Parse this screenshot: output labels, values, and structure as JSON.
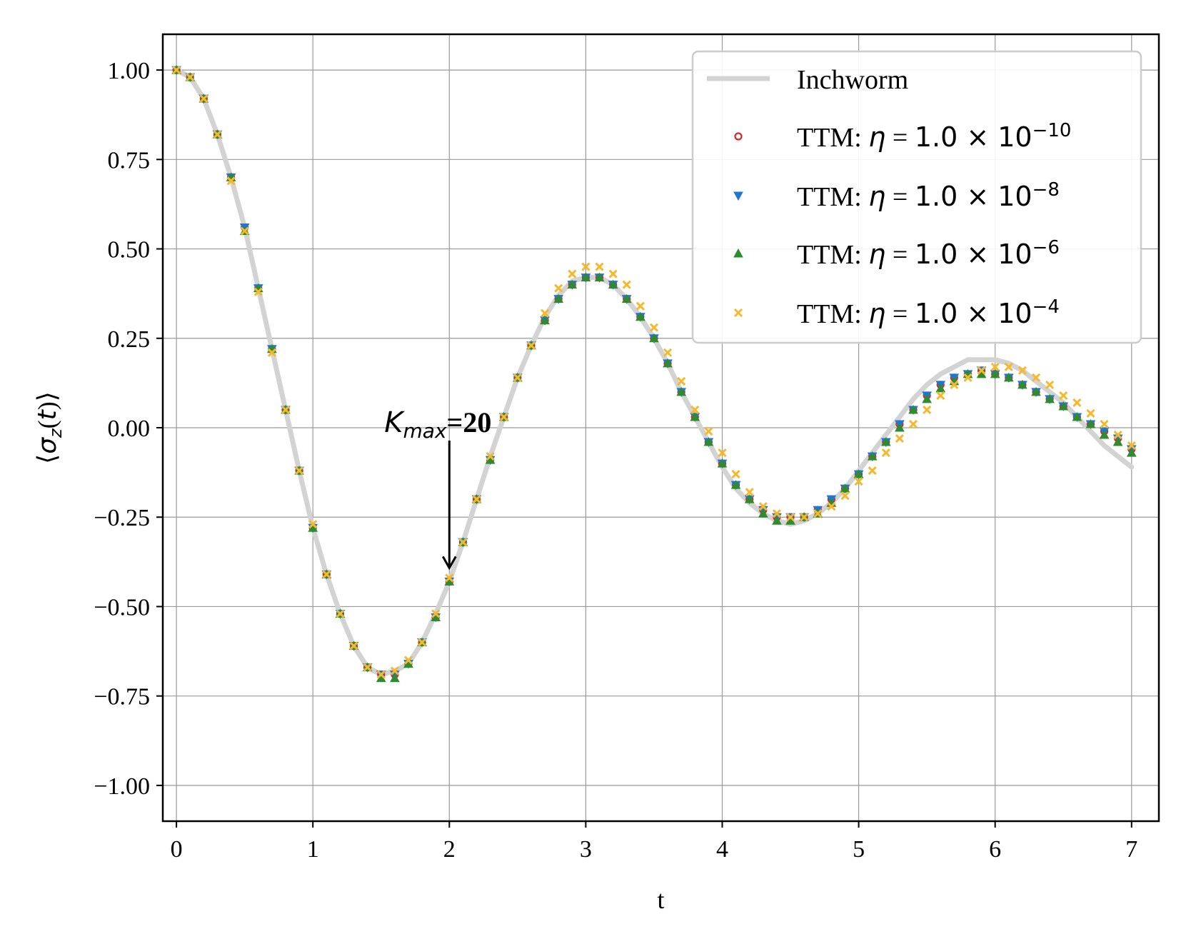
{
  "chart_data": {
    "type": "line+scatter",
    "xlabel": "t",
    "ylabel": "⟨σz(t)⟩",
    "xlim": [
      -0.1,
      7.2
    ],
    "ylim": [
      -1.1,
      1.1
    ],
    "xticks": [
      "0",
      "1",
      "2",
      "3",
      "4",
      "5",
      "6",
      "7"
    ],
    "yticks": [
      "1.00",
      "0.75",
      "0.50",
      "0.25",
      "0.00",
      "−0.25",
      "−0.50",
      "−0.75",
      "−1.00"
    ],
    "grid": true,
    "legend_position": "top-right",
    "x": [
      0.0,
      0.1,
      0.2,
      0.3,
      0.4,
      0.5,
      0.6,
      0.7,
      0.8,
      0.9,
      1.0,
      1.1,
      1.2,
      1.3,
      1.4,
      1.5,
      1.6,
      1.7,
      1.8,
      1.9,
      2.0,
      2.1,
      2.2,
      2.3,
      2.4,
      2.5,
      2.6,
      2.7,
      2.8,
      2.9,
      3.0,
      3.1,
      3.2,
      3.3,
      3.4,
      3.5,
      3.6,
      3.7,
      3.8,
      3.9,
      4.0,
      4.1,
      4.2,
      4.3,
      4.4,
      4.5,
      4.6,
      4.7,
      4.8,
      4.9,
      5.0,
      5.1,
      5.2,
      5.3,
      5.4,
      5.5,
      5.6,
      5.7,
      5.8,
      5.9,
      6.0,
      6.1,
      6.2,
      6.3,
      6.4,
      6.5,
      6.6,
      6.7,
      6.8,
      6.9,
      7.0
    ],
    "series": [
      {
        "name": "Inchworm",
        "kind": "line",
        "color": "#d3d3d3",
        "values": [
          1.0,
          0.98,
          0.92,
          0.82,
          0.7,
          0.56,
          0.39,
          0.22,
          0.05,
          -0.12,
          -0.28,
          -0.41,
          -0.52,
          -0.61,
          -0.67,
          -0.69,
          -0.68,
          -0.66,
          -0.6,
          -0.52,
          -0.43,
          -0.32,
          -0.2,
          -0.08,
          0.03,
          0.14,
          0.23,
          0.31,
          0.37,
          0.41,
          0.42,
          0.42,
          0.4,
          0.36,
          0.31,
          0.25,
          0.18,
          0.1,
          0.03,
          -0.04,
          -0.11,
          -0.17,
          -0.21,
          -0.24,
          -0.26,
          -0.27,
          -0.26,
          -0.24,
          -0.21,
          -0.17,
          -0.12,
          -0.07,
          -0.02,
          0.03,
          0.08,
          0.12,
          0.15,
          0.17,
          0.19,
          0.19,
          0.19,
          0.18,
          0.16,
          0.13,
          0.1,
          0.07,
          0.03,
          -0.01,
          -0.05,
          -0.08,
          -0.11
        ]
      },
      {
        "name": "TTM: η = 1.0 × 10⁻¹⁰",
        "kind": "scatter",
        "marker": "circle",
        "color": "#d62728",
        "values": [
          1.0,
          0.98,
          0.92,
          0.82,
          0.7,
          0.56,
          0.39,
          0.22,
          0.05,
          -0.12,
          -0.28,
          -0.41,
          -0.52,
          -0.61,
          -0.67,
          -0.69,
          -0.69,
          -0.66,
          -0.6,
          -0.53,
          -0.43,
          -0.32,
          -0.2,
          -0.09,
          0.03,
          0.14,
          0.23,
          0.3,
          0.36,
          0.4,
          0.42,
          0.42,
          0.4,
          0.36,
          0.31,
          0.25,
          0.18,
          0.1,
          0.03,
          -0.04,
          -0.1,
          -0.16,
          -0.2,
          -0.23,
          -0.25,
          -0.25,
          -0.25,
          -0.23,
          -0.2,
          -0.17,
          -0.13,
          -0.08,
          -0.04,
          0.01,
          0.05,
          0.09,
          0.12,
          0.14,
          0.15,
          0.16,
          0.15,
          0.14,
          0.12,
          0.1,
          0.08,
          0.06,
          0.03,
          0.01,
          -0.01,
          -0.03,
          -0.06
        ]
      },
      {
        "name": "TTM: η = 1.0 × 10⁻⁸",
        "kind": "scatter",
        "marker": "triangle-down",
        "color": "#1f77d4",
        "values": [
          1.0,
          0.98,
          0.92,
          0.82,
          0.7,
          0.56,
          0.39,
          0.22,
          0.05,
          -0.12,
          -0.28,
          -0.41,
          -0.52,
          -0.61,
          -0.67,
          -0.69,
          -0.69,
          -0.66,
          -0.6,
          -0.53,
          -0.43,
          -0.32,
          -0.2,
          -0.09,
          0.03,
          0.14,
          0.23,
          0.3,
          0.36,
          0.4,
          0.42,
          0.42,
          0.4,
          0.36,
          0.31,
          0.25,
          0.18,
          0.1,
          0.03,
          -0.04,
          -0.1,
          -0.16,
          -0.2,
          -0.23,
          -0.25,
          -0.25,
          -0.25,
          -0.23,
          -0.2,
          -0.17,
          -0.13,
          -0.08,
          -0.04,
          0.01,
          0.05,
          0.09,
          0.12,
          0.14,
          0.15,
          0.16,
          0.15,
          0.14,
          0.12,
          0.1,
          0.08,
          0.06,
          0.03,
          0.01,
          -0.01,
          -0.03,
          -0.06
        ]
      },
      {
        "name": "TTM: η = 1.0 × 10⁻⁶",
        "kind": "scatter",
        "marker": "triangle-up",
        "color": "#2e8b2e",
        "values": [
          1.0,
          0.98,
          0.92,
          0.82,
          0.7,
          0.55,
          0.39,
          0.22,
          0.05,
          -0.12,
          -0.28,
          -0.41,
          -0.52,
          -0.61,
          -0.67,
          -0.7,
          -0.7,
          -0.66,
          -0.6,
          -0.53,
          -0.43,
          -0.32,
          -0.2,
          -0.09,
          0.03,
          0.14,
          0.23,
          0.3,
          0.36,
          0.4,
          0.42,
          0.42,
          0.4,
          0.36,
          0.31,
          0.25,
          0.18,
          0.1,
          0.03,
          -0.04,
          -0.1,
          -0.16,
          -0.2,
          -0.24,
          -0.26,
          -0.26,
          -0.25,
          -0.24,
          -0.21,
          -0.17,
          -0.13,
          -0.08,
          -0.04,
          0.0,
          0.05,
          0.08,
          0.11,
          0.13,
          0.15,
          0.15,
          0.15,
          0.14,
          0.12,
          0.1,
          0.08,
          0.06,
          0.03,
          0.01,
          -0.02,
          -0.04,
          -0.07
        ]
      },
      {
        "name": "TTM: η = 1.0 × 10⁻⁴",
        "kind": "scatter",
        "marker": "x",
        "color": "#f5b82e",
        "values": [
          1.0,
          0.98,
          0.92,
          0.82,
          0.69,
          0.55,
          0.38,
          0.21,
          0.05,
          -0.12,
          -0.27,
          -0.41,
          -0.52,
          -0.61,
          -0.67,
          -0.69,
          -0.68,
          -0.65,
          -0.6,
          -0.52,
          -0.42,
          -0.32,
          -0.2,
          -0.08,
          0.03,
          0.14,
          0.23,
          0.32,
          0.39,
          0.43,
          0.45,
          0.45,
          0.43,
          0.4,
          0.34,
          0.28,
          0.21,
          0.13,
          0.05,
          -0.01,
          -0.07,
          -0.13,
          -0.18,
          -0.22,
          -0.24,
          -0.25,
          -0.25,
          -0.24,
          -0.22,
          -0.19,
          -0.15,
          -0.12,
          -0.07,
          -0.03,
          0.01,
          0.05,
          0.09,
          0.12,
          0.14,
          0.16,
          0.17,
          0.17,
          0.16,
          0.14,
          0.12,
          0.09,
          0.07,
          0.04,
          0.01,
          -0.02,
          -0.05
        ]
      }
    ],
    "annotation": {
      "text_main": "K",
      "text_sub": "max",
      "text_suffix": "=20",
      "x": 2.0,
      "y": -0.42,
      "label_y": 0.04
    }
  }
}
